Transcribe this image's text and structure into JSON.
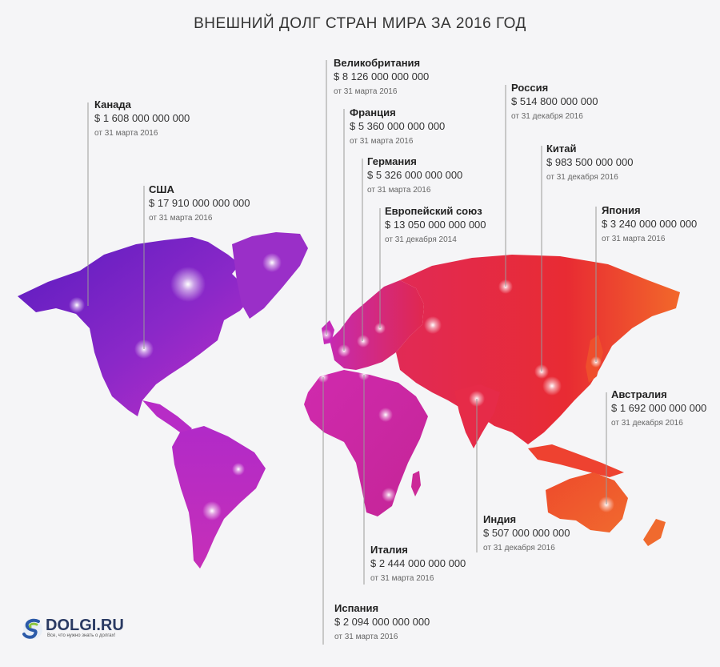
{
  "title": "ВНЕШНИЙ ДОЛГ СТРАН МИРА ЗА 2016 ГОД",
  "colors": {
    "americas_start": "#6a1fc4",
    "americas_end": "#c32cc8",
    "africa_europe": "#d62aa8",
    "asia": "#e5283f",
    "east": "#f0602a",
    "australia": "#ef5a2c",
    "leader_line": "#999999"
  },
  "countries": [
    {
      "name": "Канада",
      "value": "$ 1 608 000 000 000",
      "date": "от 31 марта 2016"
    },
    {
      "name": "США",
      "value": "$ 17 910 000 000 000",
      "date": "от 31 марта 2016"
    },
    {
      "name": "Великобритания",
      "value": "$ 8 126 000 000 000",
      "date": "от 31 марта 2016"
    },
    {
      "name": "Франция",
      "value": "$ 5 360 000 000 000",
      "date": "от 31 марта 2016"
    },
    {
      "name": "Германия",
      "value": "$ 5 326 000 000 000",
      "date": "от 31 марта 2016"
    },
    {
      "name": "Европейский союз",
      "value": "$ 13 050 000 000 000",
      "date": "от 31 декабря 2014"
    },
    {
      "name": "Россия",
      "value": "$ 514 800 000 000",
      "date": "от 31 декабря 2016"
    },
    {
      "name": "Китай",
      "value": "$ 983 500 000 000",
      "date": "от 31 декабря 2016"
    },
    {
      "name": "Япония",
      "value": "$ 3 240 000 000 000",
      "date": "от 31 марта 2016"
    },
    {
      "name": "Австралия",
      "value": "$ 1 692 000 000 000",
      "date": "от 31 декабря 2016"
    },
    {
      "name": "Индия",
      "value": "$ 507 000 000 000",
      "date": "от 31 декабря 2016"
    },
    {
      "name": "Италия",
      "value": "$ 2 444 000 000 000",
      "date": "от 31 марта 2016"
    },
    {
      "name": "Испания",
      "value": "$ 2 094 000 000 000",
      "date": "от 31 марта 2016"
    }
  ],
  "logo": {
    "name": "DOLGI.RU",
    "slogan": "Все, что нужно знать о долгах!"
  }
}
